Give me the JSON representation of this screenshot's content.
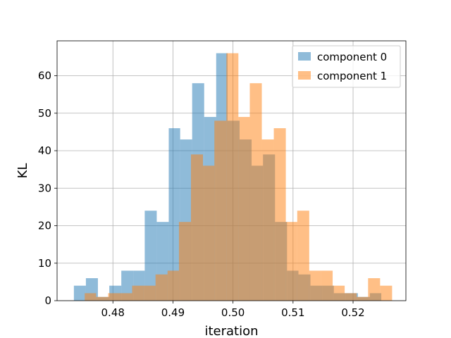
{
  "chart_data": {
    "type": "histogram",
    "xlabel": "iteration",
    "ylabel": "KL",
    "xlim": [
      0.4707,
      0.5288
    ],
    "ylim": [
      0,
      69.3
    ],
    "x_ticks": [
      0.48,
      0.49,
      0.5,
      0.51,
      0.52
    ],
    "x_tick_labels": [
      "0.48",
      "0.49",
      "0.50",
      "0.51",
      "0.52"
    ],
    "y_ticks": [
      0,
      10,
      20,
      30,
      40,
      50,
      60
    ],
    "y_tick_labels": [
      "0",
      "10",
      "20",
      "30",
      "40",
      "50",
      "60"
    ],
    "grid": true,
    "legend_position": "upper right",
    "series": [
      {
        "name": "component 0",
        "color": "#1f77b4",
        "alpha": 0.5,
        "bin_edges": [
          0.4735,
          0.4755,
          0.4775,
          0.4794,
          0.4814,
          0.4834,
          0.4853,
          0.4873,
          0.4893,
          0.4912,
          0.4932,
          0.4952,
          0.4972,
          0.4991,
          0.5011,
          0.5031,
          0.505,
          0.507,
          0.509,
          0.5109,
          0.5129,
          0.5149,
          0.5168,
          0.5188,
          0.5208,
          0.5228,
          0.5247
        ],
        "counts": [
          4,
          6,
          1,
          4,
          8,
          8,
          24,
          21,
          46,
          43,
          58,
          49,
          66,
          48,
          43,
          36,
          39,
          21,
          8,
          7,
          4,
          4,
          2,
          2,
          1,
          2
        ]
      },
      {
        "name": "component 1",
        "color": "#ff7f0e",
        "alpha": 0.5,
        "bin_edges": [
          0.4753,
          0.4772,
          0.4792,
          0.4812,
          0.4832,
          0.4851,
          0.4871,
          0.4891,
          0.491,
          0.493,
          0.495,
          0.4969,
          0.4989,
          0.5009,
          0.5028,
          0.5048,
          0.5068,
          0.5088,
          0.5107,
          0.5127,
          0.5147,
          0.5166,
          0.5186,
          0.5206,
          0.5225,
          0.5245,
          0.5265
        ],
        "counts": [
          2,
          1,
          2,
          2,
          4,
          4,
          7,
          8,
          21,
          39,
          36,
          48,
          66,
          49,
          58,
          43,
          46,
          21,
          24,
          8,
          8,
          4,
          2,
          1,
          6,
          4
        ]
      }
    ]
  }
}
